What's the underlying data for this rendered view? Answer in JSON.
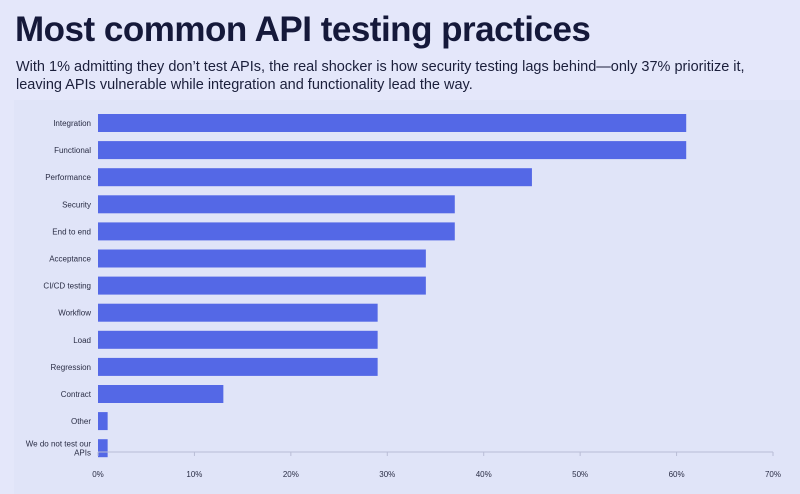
{
  "header": {
    "title": "Most common API testing practices",
    "subtitle": "With 1% admitting they don’t test APIs, the real shocker is how security testing lags behind—only 37% prioritize it, leaving APIs vulnerable while integration and functionality lead the way."
  },
  "colors": {
    "background": "#e4e7fa",
    "panel": "#e0e4f8",
    "bar": "#5468e6",
    "axis": "#b9bdd6"
  },
  "chart_data": {
    "type": "bar",
    "orientation": "horizontal",
    "title": "",
    "xlabel": "",
    "ylabel": "",
    "xlim": [
      0,
      70
    ],
    "x_ticks": [
      "0%",
      "10%",
      "20%",
      "30%",
      "40%",
      "50%",
      "60%",
      "70%"
    ],
    "grid": false,
    "legend": "none",
    "categories": [
      "Integration",
      "Functional",
      "Performance",
      "Security",
      "End to end",
      "Acceptance",
      "CI/CD testing",
      "Workflow",
      "Load",
      "Regression",
      "Contract",
      "Other",
      "We do not test our APIs"
    ],
    "values": [
      61,
      61,
      45,
      37,
      37,
      34,
      34,
      29,
      29,
      29,
      13,
      1,
      1
    ],
    "unit": "%"
  }
}
